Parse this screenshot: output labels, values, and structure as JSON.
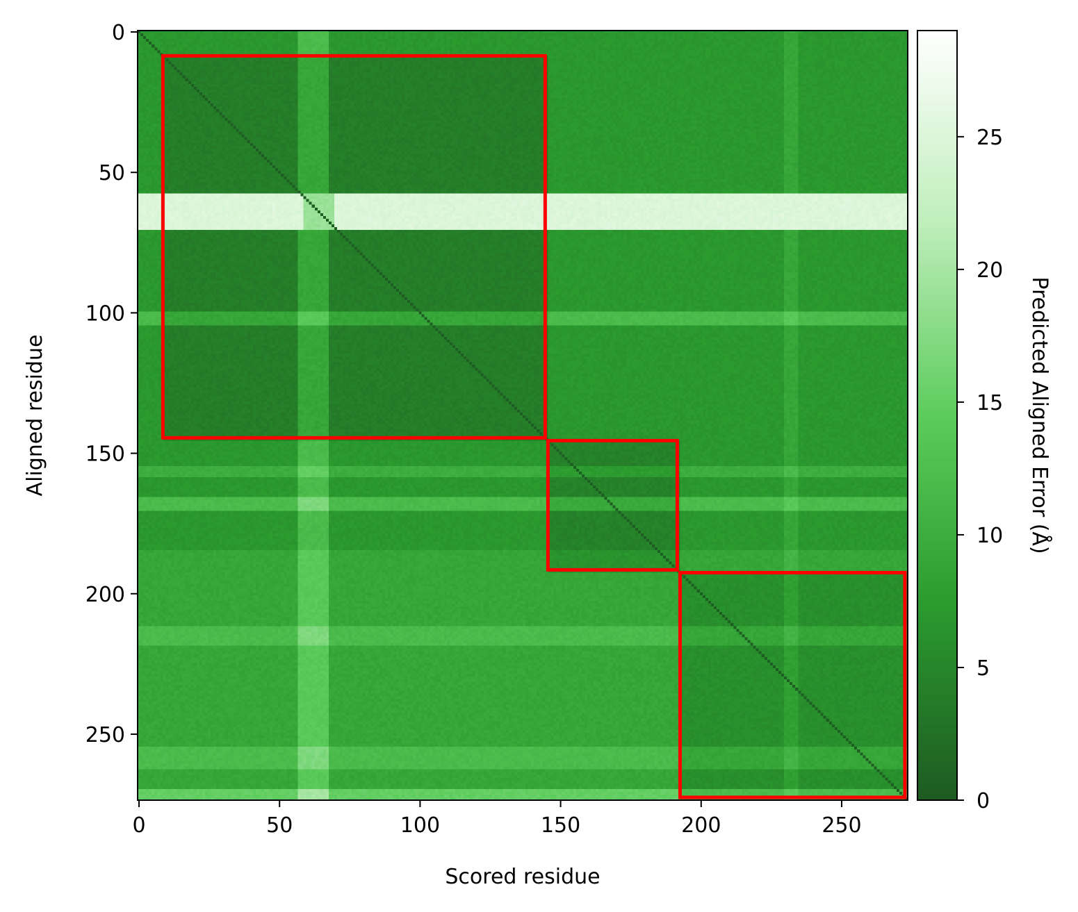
{
  "chart_data": {
    "type": "heatmap",
    "title": "",
    "xlabel": "Scored residue",
    "ylabel": "Aligned residue",
    "colorbar_label": "Predicted Aligned Error (Å)",
    "matrix_size": 274,
    "xlim": [
      0,
      274
    ],
    "ylim": [
      274,
      0
    ],
    "x_ticks": [
      0,
      50,
      100,
      150,
      200,
      250
    ],
    "y_ticks": [
      0,
      50,
      100,
      150,
      200,
      250
    ],
    "colorbar_ticks": [
      0,
      5,
      10,
      15,
      20,
      25
    ],
    "colorbar_range": [
      0,
      29
    ],
    "colormap": [
      "#1e5a22",
      "#2a9a2e",
      "#5ccc5c",
      "#bfeebb",
      "#ffffff"
    ],
    "diagonal_value": 0.5,
    "background_value": 7,
    "column_bands": [
      {
        "start": 57,
        "end": 67,
        "delta": 5
      },
      {
        "start": 230,
        "end": 234,
        "delta": 2
      }
    ],
    "row_bands": [
      {
        "start": 58,
        "end": 70,
        "value": 25
      },
      {
        "start": 100,
        "end": 104,
        "delta": 5
      },
      {
        "start": 155,
        "end": 158,
        "delta": 3
      },
      {
        "start": 166,
        "end": 170,
        "delta": 5
      },
      {
        "start": 185,
        "end": 274,
        "delta": 2
      },
      {
        "start": 212,
        "end": 218,
        "delta": 3
      },
      {
        "start": 255,
        "end": 262,
        "delta": 3
      },
      {
        "start": 270,
        "end": 274,
        "delta": 6
      }
    ],
    "domains": [
      {
        "start": 9,
        "end": 145,
        "value": 2.5
      },
      {
        "start": 146,
        "end": 192,
        "value": 3
      },
      {
        "start": 193,
        "end": 273,
        "value": 2.5
      }
    ],
    "box_color": "#ff0000"
  }
}
